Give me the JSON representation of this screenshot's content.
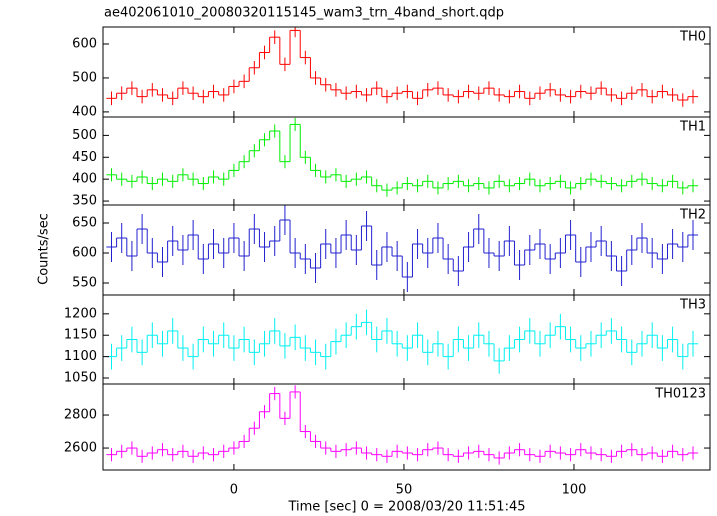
{
  "title": "ae402061010_20080320115145_wam3_trn_4band_short.qdp",
  "xlabel": "Time [sec] 0 = 2008/03/20 11:51:45",
  "ylabel": "Counts/sec",
  "chart_data": [
    {
      "type": "line",
      "xlim": [
        -38.5,
        140
      ],
      "ylim": [
        385,
        650
      ],
      "yticks": [
        400,
        500,
        600
      ],
      "x": [
        -36,
        -33,
        -30,
        -27,
        -24,
        -21,
        -18,
        -15,
        -12,
        -9,
        -6,
        -3,
        0,
        3,
        6,
        9,
        12,
        15,
        18,
        21,
        24,
        27,
        30,
        33,
        36,
        39,
        42,
        45,
        48,
        51,
        54,
        57,
        60,
        63,
        66,
        69,
        72,
        75,
        78,
        81,
        84,
        87,
        90,
        93,
        96,
        99,
        102,
        105,
        108,
        111,
        114,
        117,
        120,
        123,
        126,
        129,
        132,
        135
      ],
      "series": [
        {
          "name": "TH0",
          "color": "#ff0000",
          "error": 20,
          "values": [
            440,
            455,
            470,
            445,
            465,
            450,
            440,
            470,
            455,
            445,
            460,
            450,
            475,
            490,
            530,
            575,
            620,
            540,
            640,
            560,
            500,
            480,
            465,
            455,
            460,
            450,
            470,
            445,
            455,
            460,
            440,
            465,
            470,
            450,
            445,
            460,
            455,
            470,
            450,
            445,
            460,
            440,
            455,
            465,
            450,
            445,
            460,
            455,
            470,
            450,
            440,
            455,
            465,
            445,
            460,
            450,
            435,
            445
          ]
        }
      ]
    },
    {
      "type": "line",
      "xlim": [
        -38.5,
        140
      ],
      "ylim": [
        341,
        542
      ],
      "yticks": [
        350,
        400,
        450,
        500
      ],
      "x": [
        -36,
        -33,
        -30,
        -27,
        -24,
        -21,
        -18,
        -15,
        -12,
        -9,
        -6,
        -3,
        0,
        3,
        6,
        9,
        12,
        15,
        18,
        21,
        24,
        27,
        30,
        33,
        36,
        39,
        42,
        45,
        48,
        51,
        54,
        57,
        60,
        63,
        66,
        69,
        72,
        75,
        78,
        81,
        84,
        87,
        90,
        93,
        96,
        99,
        102,
        105,
        108,
        111,
        114,
        117,
        120,
        123,
        126,
        129,
        132,
        135
      ],
      "series": [
        {
          "name": "TH1",
          "color": "#00ee00",
          "error": 15,
          "values": [
            410,
            400,
            395,
            405,
            390,
            400,
            395,
            410,
            400,
            390,
            405,
            400,
            420,
            440,
            465,
            490,
            510,
            440,
            525,
            450,
            420,
            405,
            410,
            395,
            400,
            405,
            385,
            375,
            380,
            390,
            385,
            395,
            380,
            390,
            395,
            385,
            390,
            380,
            395,
            385,
            390,
            400,
            385,
            390,
            395,
            380,
            390,
            400,
            395,
            390,
            385,
            395,
            400,
            390,
            385,
            395,
            380,
            385
          ]
        }
      ]
    },
    {
      "type": "line",
      "xlim": [
        -38.5,
        140
      ],
      "ylim": [
        530,
        680
      ],
      "yticks": [
        550,
        600,
        650
      ],
      "x": [
        -36,
        -33,
        -30,
        -27,
        -24,
        -21,
        -18,
        -15,
        -12,
        -9,
        -6,
        -3,
        0,
        3,
        6,
        9,
        12,
        15,
        18,
        21,
        24,
        27,
        30,
        33,
        36,
        39,
        42,
        45,
        48,
        51,
        54,
        57,
        60,
        63,
        66,
        69,
        72,
        75,
        78,
        81,
        84,
        87,
        90,
        93,
        96,
        99,
        102,
        105,
        108,
        111,
        114,
        117,
        120,
        123,
        126,
        129,
        132,
        135
      ],
      "series": [
        {
          "name": "TH2",
          "color": "#2020d0",
          "error": 25,
          "values": [
            610,
            625,
            595,
            640,
            600,
            585,
            620,
            605,
            630,
            590,
            615,
            600,
            625,
            595,
            640,
            610,
            620,
            655,
            600,
            590,
            575,
            615,
            600,
            630,
            605,
            645,
            580,
            610,
            595,
            560,
            615,
            600,
            625,
            590,
            570,
            610,
            640,
            600,
            595,
            620,
            580,
            605,
            615,
            590,
            600,
            630,
            585,
            610,
            620,
            595,
            570,
            605,
            625,
            600,
            590,
            615,
            610,
            630
          ]
        }
      ]
    },
    {
      "type": "line",
      "xlim": [
        -38.5,
        140
      ],
      "ylim": [
        1036,
        1244
      ],
      "yticks": [
        1050,
        1100,
        1150,
        1200
      ],
      "x": [
        -36,
        -33,
        -30,
        -27,
        -24,
        -21,
        -18,
        -15,
        -12,
        -9,
        -6,
        -3,
        0,
        3,
        6,
        9,
        12,
        15,
        18,
        21,
        24,
        27,
        30,
        33,
        36,
        39,
        42,
        45,
        48,
        51,
        54,
        57,
        60,
        63,
        66,
        69,
        72,
        75,
        78,
        81,
        84,
        87,
        90,
        93,
        96,
        99,
        102,
        105,
        108,
        111,
        114,
        117,
        120,
        123,
        126,
        129,
        132,
        135
      ],
      "series": [
        {
          "name": "TH3",
          "color": "#00f0f0",
          "error": 30,
          "values": [
            1100,
            1120,
            1140,
            1110,
            1150,
            1130,
            1160,
            1120,
            1100,
            1140,
            1130,
            1150,
            1120,
            1140,
            1110,
            1130,
            1160,
            1125,
            1145,
            1120,
            1110,
            1100,
            1135,
            1150,
            1170,
            1180,
            1140,
            1160,
            1130,
            1120,
            1150,
            1110,
            1130,
            1100,
            1140,
            1120,
            1150,
            1130,
            1090,
            1120,
            1140,
            1160,
            1130,
            1150,
            1170,
            1140,
            1120,
            1130,
            1150,
            1160,
            1140,
            1110,
            1130,
            1150,
            1120,
            1140,
            1100,
            1130
          ]
        }
      ]
    },
    {
      "type": "line",
      "xlim": [
        -38.5,
        140
      ],
      "ylim": [
        2467,
        2988
      ],
      "yticks": [
        2600,
        2800
      ],
      "xticks": [
        0,
        50,
        100
      ],
      "x": [
        -36,
        -33,
        -30,
        -27,
        -24,
        -21,
        -18,
        -15,
        -12,
        -9,
        -6,
        -3,
        0,
        3,
        6,
        9,
        12,
        15,
        18,
        21,
        24,
        27,
        30,
        33,
        36,
        39,
        42,
        45,
        48,
        51,
        54,
        57,
        60,
        63,
        66,
        69,
        72,
        75,
        78,
        81,
        84,
        87,
        90,
        93,
        96,
        99,
        102,
        105,
        108,
        111,
        114,
        117,
        120,
        123,
        126,
        129,
        132,
        135
      ],
      "series": [
        {
          "name": "TH0123",
          "color": "#ff00ff",
          "error": 40,
          "values": [
            2560,
            2580,
            2600,
            2550,
            2570,
            2590,
            2560,
            2580,
            2550,
            2570,
            2560,
            2580,
            2600,
            2640,
            2720,
            2820,
            2930,
            2780,
            2940,
            2700,
            2640,
            2600,
            2580,
            2590,
            2600,
            2570,
            2560,
            2550,
            2580,
            2570,
            2560,
            2590,
            2600,
            2560,
            2550,
            2570,
            2580,
            2560,
            2540,
            2570,
            2590,
            2560,
            2550,
            2580,
            2570,
            2560,
            2590,
            2570,
            2560,
            2550,
            2580,
            2590,
            2560,
            2570,
            2550,
            2580,
            2560,
            2570
          ]
        }
      ]
    }
  ]
}
